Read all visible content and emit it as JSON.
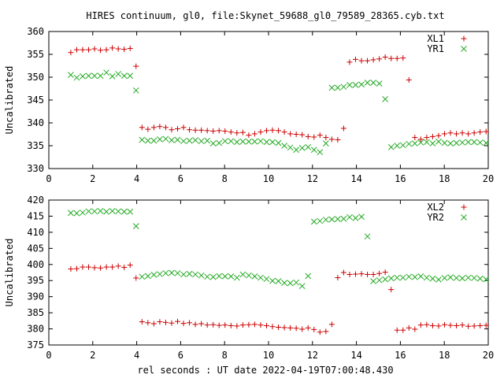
{
  "title": "HIRES continuum, gl0, file:Skynet_59688_gl0_79589_28365.cyb.txt",
  "xlabel": "rel seconds : UT date 2022-04-19T07:00:48.430",
  "colors": {
    "red_series": "#cc0000",
    "green_series": "#22aa22",
    "frame": "#000000"
  },
  "chart_data": [
    {
      "type": "scatter",
      "title": "HIRES continuum, gl0, file:Skynet_59688_gl0_79589_28365.cyb.txt",
      "xlabel": "",
      "ylabel": "Uncalibrated",
      "xlim": [
        0,
        20
      ],
      "ylim": [
        330,
        360
      ],
      "xticks": [
        0,
        2,
        4,
        6,
        8,
        10,
        12,
        14,
        16,
        18,
        20
      ],
      "yticks": [
        330,
        335,
        340,
        345,
        350,
        355,
        360
      ],
      "grid": false,
      "legend": "top-right",
      "series": [
        {
          "name": "XL1",
          "marker": "plus",
          "color": "#cc0000",
          "x": [
            1.0,
            1.27,
            1.54,
            1.81,
            2.08,
            2.35,
            2.62,
            2.89,
            3.16,
            3.43,
            3.7,
            3.97,
            4.24,
            4.51,
            4.78,
            5.05,
            5.32,
            5.59,
            5.86,
            6.13,
            6.4,
            6.67,
            6.94,
            7.21,
            7.48,
            7.75,
            8.02,
            8.29,
            8.56,
            8.83,
            9.1,
            9.37,
            9.64,
            9.91,
            10.18,
            10.45,
            10.72,
            10.99,
            11.26,
            11.53,
            11.8,
            12.07,
            12.34,
            12.61,
            12.88,
            13.15,
            13.42,
            13.69,
            13.96,
            14.23,
            14.5,
            14.77,
            15.04,
            15.31,
            15.58,
            15.85,
            16.12,
            16.39,
            16.66,
            16.93,
            17.2,
            17.47,
            17.74,
            18.01,
            18.28,
            18.55,
            18.82,
            19.09,
            19.36,
            19.63,
            19.9
          ],
          "y": [
            355.4,
            356.0,
            356.0,
            356.0,
            356.2,
            355.9,
            356.0,
            356.4,
            356.2,
            356.1,
            356.3,
            352.4,
            339.0,
            338.6,
            339.0,
            339.2,
            339.0,
            338.5,
            338.7,
            339.0,
            338.5,
            338.4,
            338.4,
            338.3,
            338.2,
            338.3,
            338.2,
            338.0,
            337.8,
            337.9,
            337.3,
            337.6,
            338.0,
            338.3,
            338.4,
            338.3,
            338.0,
            337.6,
            337.5,
            337.4,
            337.0,
            336.9,
            337.3,
            336.8,
            336.4,
            336.3,
            338.8,
            353.3,
            353.9,
            353.6,
            353.6,
            353.8,
            354.0,
            354.4,
            354.1,
            354.1,
            354.2,
            349.4,
            336.8,
            336.4,
            336.8,
            337.0,
            337.2,
            337.6,
            337.8,
            337.6,
            337.8,
            337.6,
            337.8,
            338.0,
            338.1
          ],
          "note_skip": 0
        },
        {
          "name": "YR1",
          "marker": "cross",
          "color": "#22aa22",
          "x": [
            1.0,
            1.27,
            1.54,
            1.81,
            2.08,
            2.35,
            2.62,
            2.89,
            3.16,
            3.43,
            3.7,
            3.97,
            4.24,
            4.51,
            4.78,
            5.05,
            5.32,
            5.59,
            5.86,
            6.13,
            6.4,
            6.67,
            6.94,
            7.21,
            7.48,
            7.75,
            8.02,
            8.29,
            8.56,
            8.83,
            9.1,
            9.37,
            9.64,
            9.91,
            10.18,
            10.45,
            10.72,
            10.99,
            11.26,
            11.53,
            11.8,
            12.07,
            12.34,
            12.61,
            12.88,
            13.15,
            13.42,
            13.69,
            13.96,
            14.23,
            14.5,
            14.77,
            15.04,
            15.31,
            15.58,
            15.85,
            16.12,
            16.39,
            16.66,
            16.93,
            17.2,
            17.47,
            17.74,
            18.01,
            18.28,
            18.55,
            18.82,
            19.09,
            19.36,
            19.63,
            19.9
          ],
          "y": [
            350.5,
            349.9,
            350.2,
            350.3,
            350.3,
            350.3,
            351.0,
            350.2,
            350.7,
            350.3,
            350.3,
            347.1,
            336.3,
            336.1,
            336.1,
            336.4,
            336.5,
            336.2,
            336.3,
            336.0,
            336.1,
            336.2,
            336.0,
            336.1,
            335.5,
            335.6,
            336.0,
            336.0,
            335.8,
            335.9,
            335.9,
            335.9,
            336.0,
            335.8,
            335.8,
            335.6,
            335.0,
            334.6,
            334.1,
            334.5,
            334.7,
            334.1,
            333.6,
            335.5,
            347.7,
            347.7,
            347.9,
            348.3,
            348.3,
            348.4,
            348.8,
            348.8,
            348.6,
            345.2,
            334.7,
            335.0,
            335.1,
            335.4,
            335.5,
            335.7,
            335.8,
            335.5,
            335.9,
            335.6,
            335.5,
            335.6,
            335.7,
            335.8,
            335.8,
            335.7,
            335.6
          ],
          "note_skip": 0
        }
      ]
    },
    {
      "type": "scatter",
      "title": "",
      "xlabel": "rel seconds : UT date 2022-04-19T07:00:48.430",
      "ylabel": "Uncalibrated",
      "xlim": [
        0,
        20
      ],
      "ylim": [
        375,
        420
      ],
      "xticks": [
        0,
        2,
        4,
        6,
        8,
        10,
        12,
        14,
        16,
        18,
        20
      ],
      "yticks": [
        375,
        380,
        385,
        390,
        395,
        400,
        405,
        410,
        415,
        420
      ],
      "grid": false,
      "legend": "top-right",
      "series": [
        {
          "name": "XL2",
          "marker": "plus",
          "color": "#cc0000",
          "x": [
            1.0,
            1.27,
            1.54,
            1.81,
            2.08,
            2.35,
            2.62,
            2.89,
            3.16,
            3.43,
            3.7,
            3.97,
            4.24,
            4.51,
            4.78,
            5.05,
            5.32,
            5.59,
            5.86,
            6.13,
            6.4,
            6.67,
            6.94,
            7.21,
            7.48,
            7.75,
            8.02,
            8.29,
            8.56,
            8.83,
            9.1,
            9.37,
            9.64,
            9.91,
            10.18,
            10.45,
            10.72,
            10.99,
            11.26,
            11.53,
            11.8,
            12.07,
            12.34,
            12.61,
            12.88,
            13.15,
            13.42,
            13.69,
            13.96,
            14.23,
            14.5,
            14.77,
            15.04,
            15.31,
            15.58,
            15.85,
            16.12,
            16.39,
            16.66,
            16.93,
            17.2,
            17.47,
            17.74,
            18.01,
            18.28,
            18.55,
            18.82,
            19.09,
            19.36,
            19.63,
            19.9
          ],
          "y": [
            398.6,
            398.7,
            399.2,
            399.2,
            399.0,
            398.9,
            399.2,
            399.2,
            399.5,
            399.1,
            399.8,
            395.8,
            382.2,
            381.9,
            381.6,
            382.2,
            382.0,
            381.8,
            382.3,
            381.7,
            381.9,
            381.4,
            381.6,
            381.2,
            381.3,
            381.1,
            381.2,
            381.0,
            380.9,
            381.2,
            381.3,
            381.4,
            381.2,
            381.0,
            380.7,
            380.5,
            380.4,
            380.3,
            380.2,
            379.9,
            380.3,
            379.8,
            379.0,
            379.2,
            381.4,
            395.9,
            397.5,
            396.9,
            397.0,
            397.1,
            396.9,
            396.9,
            397.2,
            397.6,
            392.2,
            379.6,
            379.6,
            380.3,
            379.9,
            381.2,
            381.3,
            381.0,
            380.9,
            381.3,
            381.1,
            381.0,
            381.2,
            380.8,
            380.9,
            381.0,
            381.1
          ],
          "note_skip": 0
        },
        {
          "name": "YR2",
          "marker": "cross",
          "color": "#22aa22",
          "x": [
            1.0,
            1.27,
            1.54,
            1.81,
            2.08,
            2.35,
            2.62,
            2.89,
            3.16,
            3.43,
            3.7,
            3.97,
            4.24,
            4.51,
            4.78,
            5.05,
            5.32,
            5.59,
            5.86,
            6.13,
            6.4,
            6.67,
            6.94,
            7.21,
            7.48,
            7.75,
            8.02,
            8.29,
            8.56,
            8.83,
            9.1,
            9.37,
            9.64,
            9.91,
            10.18,
            10.45,
            10.72,
            10.99,
            11.26,
            11.53,
            11.8,
            12.07,
            12.34,
            12.61,
            12.88,
            13.15,
            13.42,
            13.69,
            13.96,
            14.23,
            14.5,
            14.77,
            15.04,
            15.31,
            15.58,
            15.85,
            16.12,
            16.39,
            16.66,
            16.93,
            17.2,
            17.47,
            17.74,
            18.01,
            18.28,
            18.55,
            18.82,
            19.09,
            19.36,
            19.63,
            19.9
          ],
          "y": [
            416.0,
            415.9,
            416.1,
            416.5,
            416.5,
            416.6,
            416.4,
            416.6,
            416.5,
            416.4,
            416.4,
            411.9,
            396.2,
            396.4,
            396.8,
            397.0,
            397.3,
            397.4,
            397.3,
            396.9,
            397.1,
            396.9,
            396.6,
            396.2,
            396.1,
            396.4,
            396.3,
            396.3,
            395.9,
            396.9,
            396.6,
            396.3,
            395.9,
            395.5,
            394.9,
            394.8,
            394.3,
            394.2,
            394.4,
            393.3,
            396.4,
            413.3,
            413.5,
            413.9,
            414.0,
            414.1,
            414.2,
            414.7,
            414.4,
            414.8,
            408.7,
            394.8,
            395.1,
            395.4,
            395.7,
            395.9,
            395.9,
            396.2,
            396.1,
            396.3,
            395.9,
            395.6,
            395.3,
            395.8,
            396.0,
            395.8,
            395.7,
            395.9,
            395.8,
            395.6,
            395.4
          ],
          "note_skip": 0
        }
      ]
    }
  ]
}
